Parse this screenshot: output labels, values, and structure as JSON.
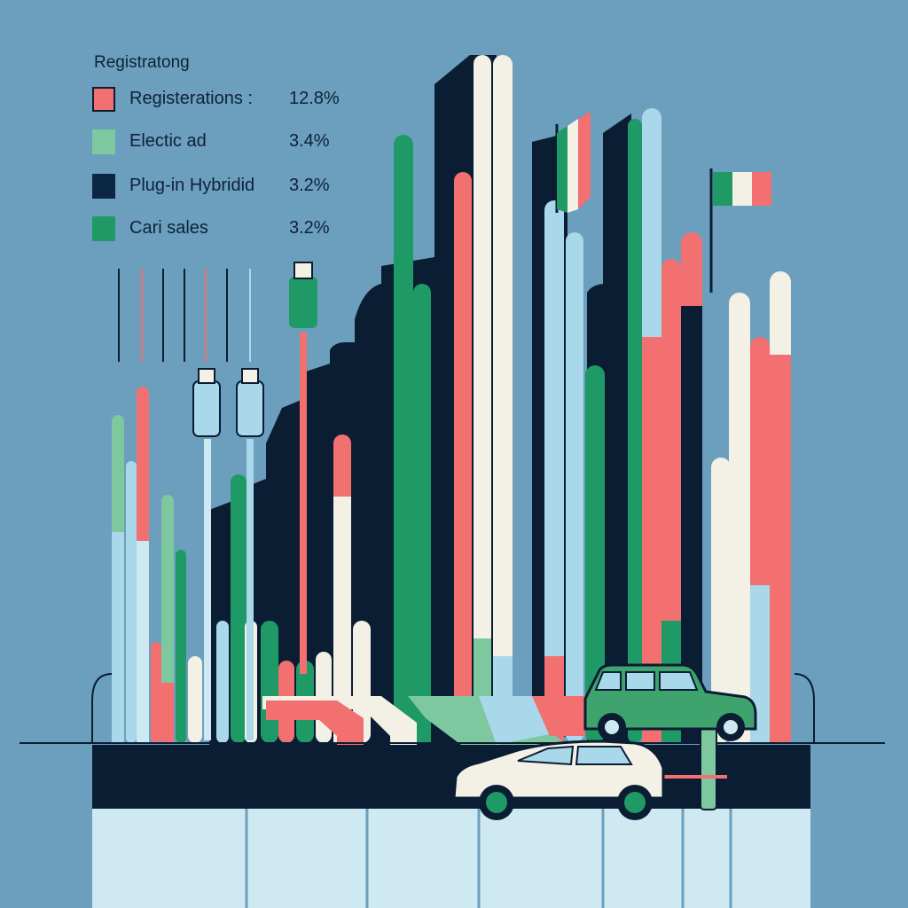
{
  "chart_data": {
    "type": "bar",
    "title": "Registratong",
    "legend_placement": "top-left",
    "legend": [
      {
        "label": "Registerations :",
        "value": "12.8%",
        "color": "#f2706f"
      },
      {
        "label": "Electic ad",
        "value": "3.4%",
        "color": "#7ec8a0"
      },
      {
        "label": "Plug-in Hybridid",
        "value": "3.2%",
        "color": "#0b2743"
      },
      {
        "label": "Cari sales",
        "value": "3.2%",
        "color": "#1f9a66"
      }
    ],
    "values": [
      12.8,
      3.4,
      3.2,
      3.2
    ]
  },
  "palette": {
    "background": "#6b9fbd",
    "navy": "#0b1d33",
    "coral": "#f2706f",
    "mint": "#7ec8a0",
    "green": "#1f9a66",
    "sky": "#a9d8ea",
    "cream": "#f3f1e6",
    "pale_blue": "#cfe9f3"
  },
  "icons": [
    "usb-plug-icon",
    "car-icon",
    "hatchback-car-icon",
    "italy-flag-icon"
  ]
}
